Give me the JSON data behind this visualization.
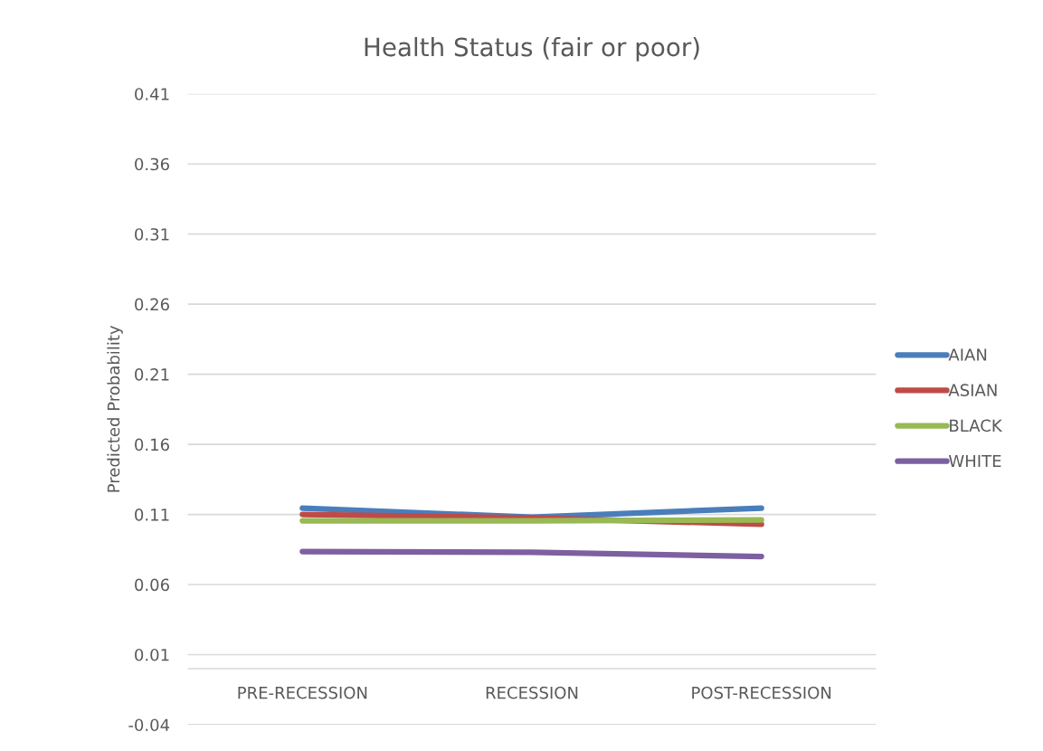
{
  "chart_data": {
    "type": "line",
    "title": "Health Status (fair or poor)",
    "ylabel": "Predicted Probability",
    "categories": [
      "PRE-RECESSION",
      "RECESSION",
      "POST-RECESSION"
    ],
    "series": [
      {
        "name": "AIAN",
        "color": "#4a7ebb",
        "values": [
          0.1145,
          0.108,
          0.1145
        ]
      },
      {
        "name": "ASIAN",
        "color": "#be4b48",
        "values": [
          0.11,
          0.1075,
          0.103
        ]
      },
      {
        "name": "BLACK",
        "color": "#98b954",
        "values": [
          0.1055,
          0.1055,
          0.106
        ]
      },
      {
        "name": "WHITE",
        "color": "#7d60a0",
        "values": [
          0.0835,
          0.083,
          0.08
        ]
      }
    ],
    "ylim": [
      -0.04,
      0.41
    ],
    "yticks": [
      -0.04,
      0.01,
      0.06,
      0.11,
      0.16,
      0.21,
      0.26,
      0.31,
      0.36,
      0.41
    ],
    "ref_lines": [
      {
        "axis": "y",
        "value": 0,
        "color": "#d9d9d9"
      }
    ],
    "grid": "y",
    "legend": "right",
    "marker": "none",
    "line_style": "solid"
  }
}
